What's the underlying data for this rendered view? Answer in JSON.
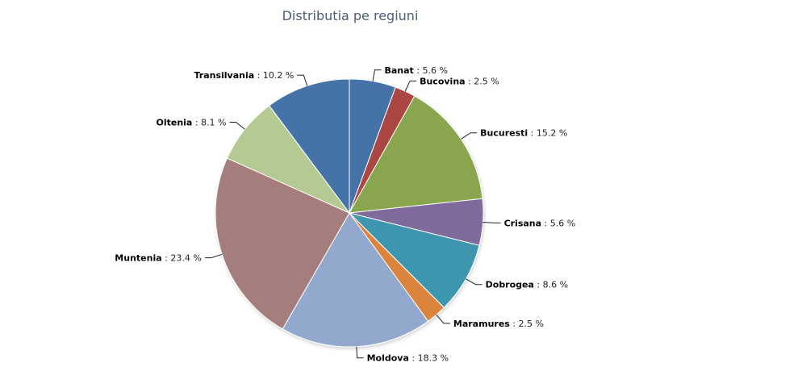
{
  "chart_data": {
    "type": "pie",
    "title": "Distributia pe regiuni",
    "unit": "%",
    "slices": [
      {
        "label": "Banat",
        "value": 5.6,
        "color": "#4572a7"
      },
      {
        "label": "Bucovina",
        "value": 2.5,
        "color": "#aa4643"
      },
      {
        "label": "Bucuresti",
        "value": 15.2,
        "color": "#89a54e"
      },
      {
        "label": "Crisana",
        "value": 5.6,
        "color": "#80699b"
      },
      {
        "label": "Dobrogea",
        "value": 8.6,
        "color": "#3d96ae"
      },
      {
        "label": "Maramures",
        "value": 2.5,
        "color": "#db843d"
      },
      {
        "label": "Moldova",
        "value": 18.3,
        "color": "#92a8cd"
      },
      {
        "label": "Muntenia",
        "value": 23.4,
        "color": "#a47d7c"
      },
      {
        "label": "Oltenia",
        "value": 8.1,
        "color": "#b5ca92"
      },
      {
        "label": "Transilvania",
        "value": 10.2,
        "color": "#4572a7"
      }
    ]
  }
}
